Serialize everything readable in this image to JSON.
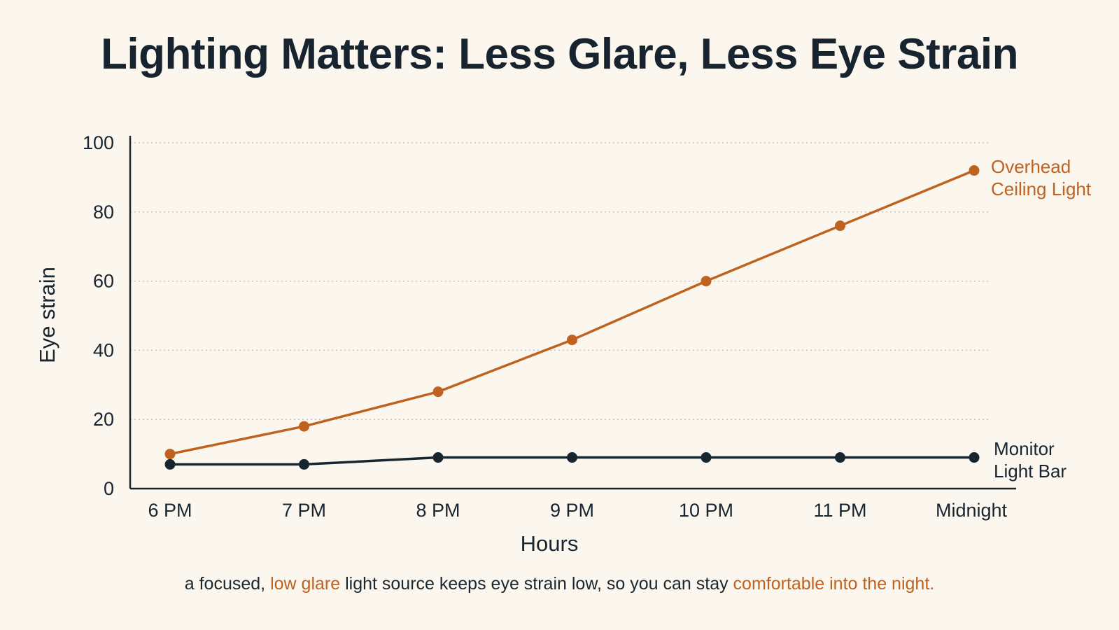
{
  "title": "Lighting Matters: Less Glare, Less Eye Strain",
  "caption": {
    "part1": "a focused, ",
    "highlight1": "low glare",
    "part2": " light source keeps eye strain low, so you can stay ",
    "highlight2": "comfortable into the night."
  },
  "colors": {
    "background": "#fbf7ef",
    "overhead": "#c0621f",
    "monitor": "#18252f",
    "grid": "#c9c3b8"
  },
  "chart_data": {
    "type": "line",
    "xlabel": "Hours",
    "ylabel": "Eye strain",
    "ylim": [
      0,
      100
    ],
    "yticks": [
      0,
      20,
      40,
      60,
      80,
      100
    ],
    "grid": true,
    "categories": [
      "6 PM",
      "7 PM",
      "8 PM",
      "9 PM",
      "10 PM",
      "11 PM",
      "Midnight"
    ],
    "series": [
      {
        "name_lines": [
          "Overhead",
          "Ceiling Light"
        ],
        "color": "#c0621f",
        "values": [
          10,
          18,
          28,
          43,
          60,
          76,
          92
        ]
      },
      {
        "name_lines": [
          "Monitor",
          "Light Bar"
        ],
        "color": "#18252f",
        "values": [
          7,
          7,
          9,
          9,
          9,
          9,
          9
        ]
      }
    ]
  }
}
